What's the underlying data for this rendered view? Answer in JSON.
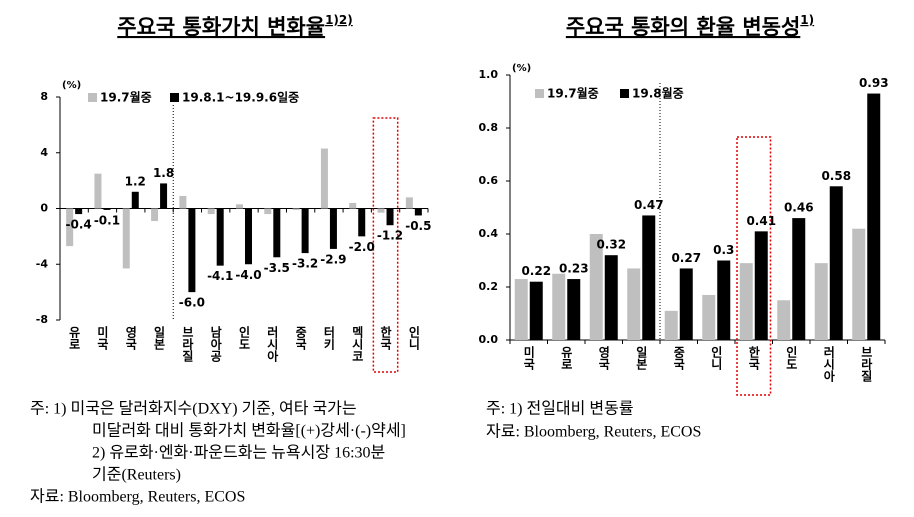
{
  "chart_data": [
    {
      "type": "bar",
      "title": "주요국 통화가치 변화율",
      "title_superscript": "1)2)",
      "unit": "(%)",
      "categories": [
        "유로",
        "미국",
        "영국",
        "일본",
        "브라질",
        "남아공",
        "인도",
        "러시아",
        "중국",
        "터키",
        "멕시코",
        "한국",
        "인니"
      ],
      "series": [
        {
          "name": "19.7월중",
          "color": "#bfbfbf",
          "values": [
            -2.7,
            2.5,
            -4.3,
            -0.9,
            0.9,
            -0.4,
            0.3,
            -0.4,
            -0.1,
            4.3,
            0.4,
            -0.3,
            0.8
          ]
        },
        {
          "name": "19.8.1~19.9.6일중",
          "color": "#000000",
          "values": [
            -0.4,
            -0.1,
            1.2,
            1.8,
            -6.0,
            -4.1,
            -4.0,
            -3.5,
            -3.2,
            -2.9,
            -2.0,
            -1.2,
            -0.5
          ],
          "value_labels": [
            "-0.4",
            "-0.1",
            "1.2",
            "1.8",
            "-6.0",
            "-4.1",
            "-4.0",
            "-3.5",
            "-3.2",
            "-2.9",
            "-2.0",
            "-1.2",
            "-0.5"
          ]
        }
      ],
      "ylim": [
        -8,
        8
      ],
      "yticks": [
        -8,
        -4,
        0,
        4,
        8
      ],
      "notes": [
        "주:  1)  미국은 달러화지수(DXY) 기준, 여타 국가는",
        "미달러화 대비 통화가치 변화율[(+)강세·(-)약세]",
        "2)  유로화·엔화·파운드화는 뉴욕시장 16:30분",
        "기준(Reuters)",
        "자료:  Bloomberg,  Reuters,  ECOS"
      ]
    },
    {
      "type": "bar",
      "title": "주요국 통화의 환율 변동성",
      "title_superscript": "1)",
      "unit": "(%)",
      "categories": [
        "미국",
        "유로",
        "영국",
        "일본",
        "중국",
        "인니",
        "한국",
        "인도",
        "러시아",
        "브라질"
      ],
      "series": [
        {
          "name": "19.7월중",
          "color": "#bfbfbf",
          "values": [
            0.23,
            0.25,
            0.4,
            0.27,
            0.11,
            0.17,
            0.29,
            0.15,
            0.29,
            0.42
          ]
        },
        {
          "name": "19.8월중",
          "color": "#000000",
          "values": [
            0.22,
            0.23,
            0.32,
            0.47,
            0.27,
            0.3,
            0.41,
            0.46,
            0.58,
            0.93
          ]
        }
      ],
      "ylim": [
        0,
        1.0
      ],
      "yticks": [
        {
          "value": 0,
          "label": "0.0"
        },
        {
          "value": 0.2,
          "label": "0.2"
        },
        {
          "value": 0.4,
          "label": "0.4"
        },
        {
          "value": 0.6,
          "label": "0.6"
        },
        {
          "value": 0.8,
          "label": "0.8"
        },
        {
          "value": 1.0,
          "label": "1.0"
        }
      ],
      "notes": [
        "주:  1)  전일대비  변동률",
        "자료:  Bloomberg,  Reuters,  ECOS"
      ]
    }
  ]
}
